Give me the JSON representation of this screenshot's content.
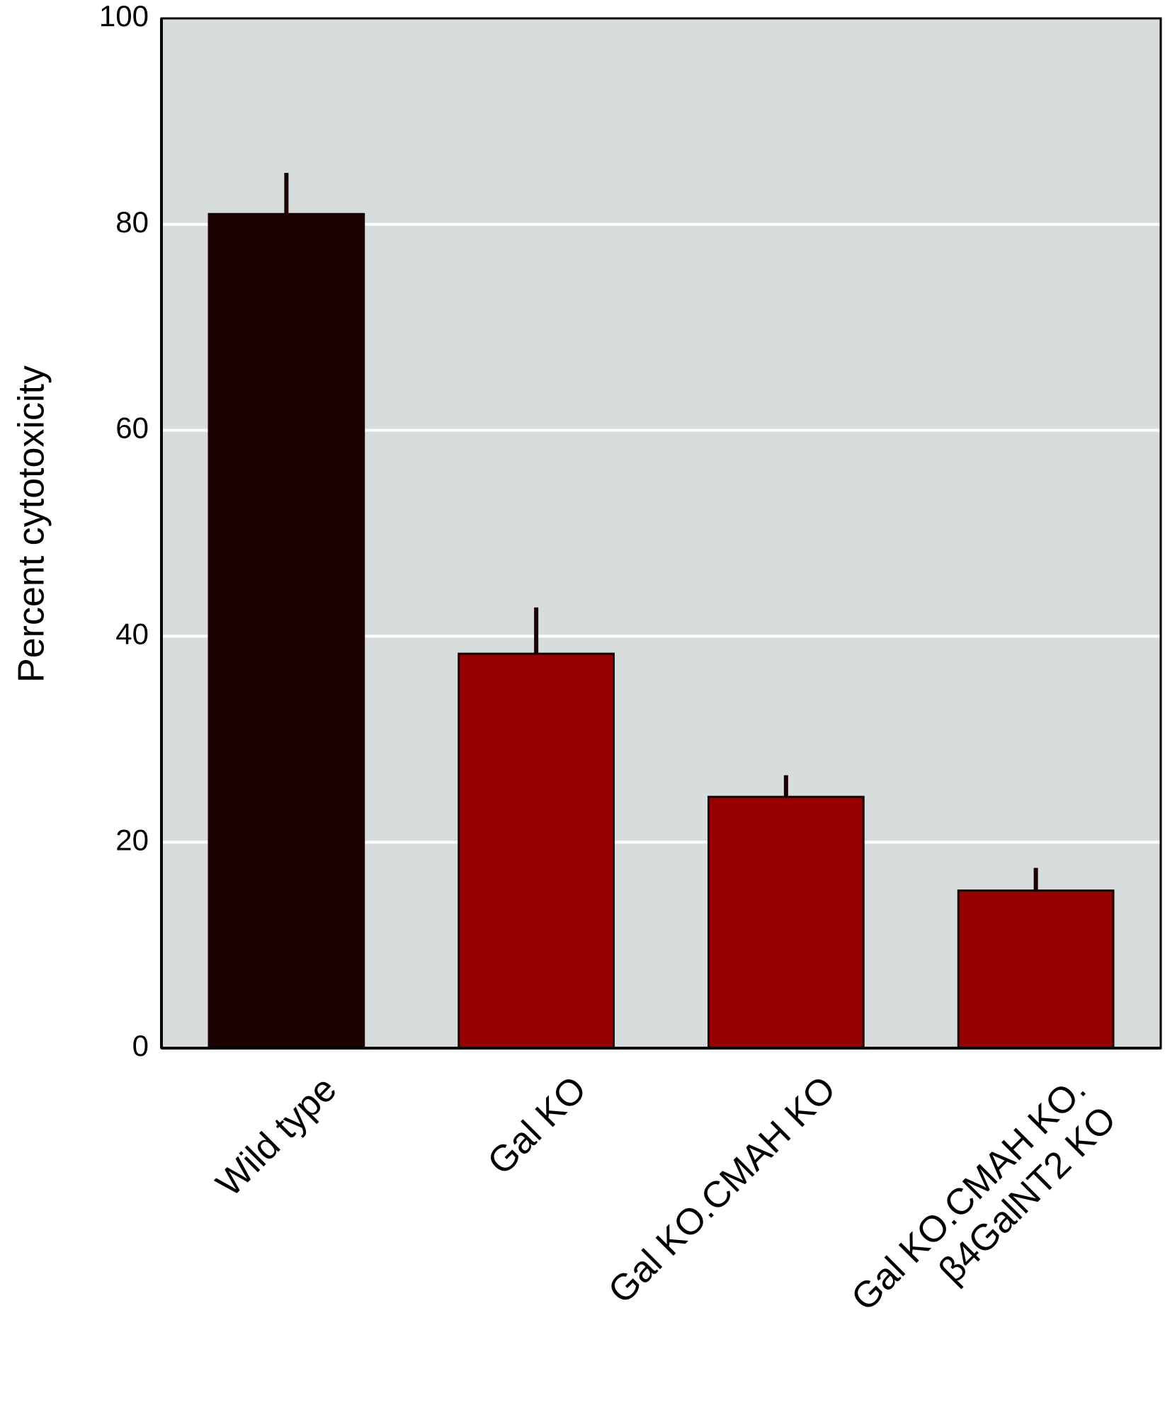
{
  "chart_data": {
    "type": "bar",
    "y_label": "Percent cytotoxicity",
    "categories": [
      "Wild type",
      "Gal KO",
      "Gal KO.CMAH KO",
      "Gal KO.CMAH KO.\nβ4GalNT2 KO"
    ],
    "values": [
      81.0,
      38.3,
      24.4,
      15.3
    ],
    "errors": [
      4.0,
      4.5,
      2.1,
      2.2
    ],
    "colors": [
      "#1a0202",
      "#990000",
      "#990000",
      "#990000"
    ],
    "ylim": [
      0,
      100
    ],
    "yticks": [
      0,
      20,
      40,
      60,
      80,
      100
    ],
    "grid": true
  }
}
